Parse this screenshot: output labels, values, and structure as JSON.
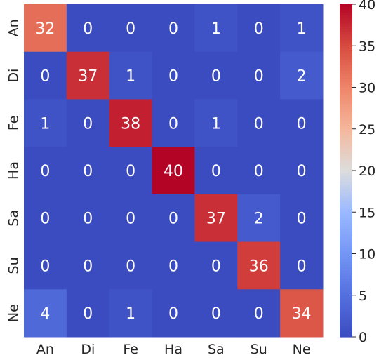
{
  "chart_data": {
    "type": "heatmap",
    "title": "",
    "xlabel": "",
    "ylabel": "",
    "x_categories": [
      "An",
      "Di",
      "Fe",
      "Ha",
      "Sa",
      "Su",
      "Ne"
    ],
    "y_categories": [
      "An",
      "Di",
      "Fe",
      "Ha",
      "Sa",
      "Su",
      "Ne"
    ],
    "values": [
      [
        32,
        0,
        0,
        0,
        1,
        0,
        1
      ],
      [
        0,
        37,
        1,
        0,
        0,
        0,
        2
      ],
      [
        1,
        0,
        38,
        0,
        1,
        0,
        0
      ],
      [
        0,
        0,
        0,
        40,
        0,
        0,
        0
      ],
      [
        0,
        0,
        0,
        0,
        37,
        2,
        0
      ],
      [
        0,
        0,
        0,
        0,
        0,
        36,
        0
      ],
      [
        4,
        0,
        1,
        0,
        0,
        0,
        34
      ]
    ],
    "colormap": "coolwarm",
    "vmin": 0,
    "vmax": 40,
    "colorbar_ticks": [
      "0",
      "5",
      "10",
      "15",
      "20",
      "25",
      "30",
      "35",
      "40"
    ],
    "annotated": true,
    "grid": false,
    "colors": {
      "low": "#3b4cc0",
      "mid": "#dddddd",
      "high": "#b40426"
    }
  }
}
